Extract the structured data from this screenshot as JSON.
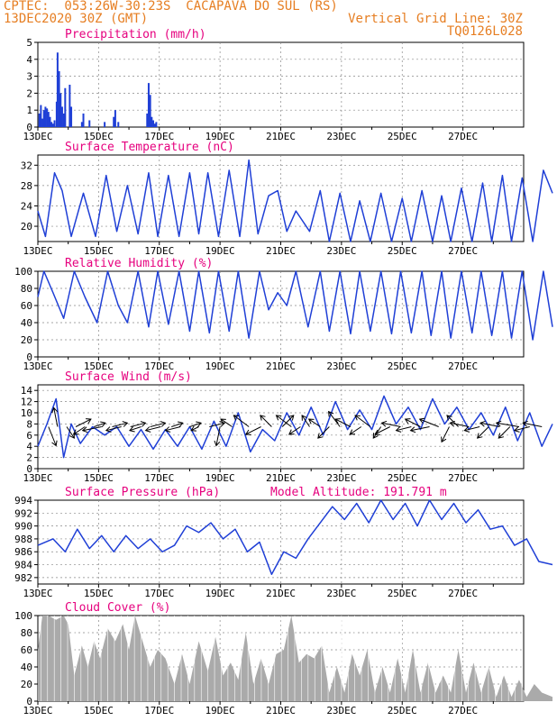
{
  "header": {
    "line1": "CPTEC:  053:26W-30:23S  CACAPAVA DO SUL (RS)",
    "line2_left": "13DEC2020 30Z (GMT)",
    "line2_right": "Vertical Grid Line: 30Z",
    "line3_right": "TQ0126L028"
  },
  "colors": {
    "header": "#e67e22",
    "panel_title": "#e6007e",
    "line": "#1f3fd6",
    "bar": "#1f3fd6",
    "cloud": "#aaaaaa",
    "grid": "#888888",
    "arrow": "#000000"
  },
  "x_ticks": [
    "13DEC",
    "15DEC",
    "17DEC",
    "19DEC",
    "21DEC",
    "23DEC",
    "25DEC",
    "27DEC"
  ],
  "chart_data": [
    {
      "id": "precip",
      "type": "bar",
      "title": "Precipitation (mm/h)",
      "ylim": [
        0,
        5
      ],
      "yticks": [
        0,
        1,
        2,
        3,
        4,
        5
      ],
      "x": [
        0.05,
        0.1,
        0.15,
        0.2,
        0.25,
        0.3,
        0.35,
        0.4,
        0.45,
        0.5,
        0.55,
        0.62,
        0.65,
        0.7,
        0.75,
        0.8,
        0.85,
        0.9,
        1.05,
        1.1,
        1.45,
        1.5,
        1.7,
        2.2,
        2.5,
        2.55,
        2.65,
        3.6,
        3.65,
        3.7,
        3.75,
        3.8,
        3.85,
        3.9
      ],
      "values": [
        0.8,
        1.3,
        0.5,
        1.0,
        1.2,
        1.1,
        0.9,
        0.6,
        0.3,
        0.2,
        0.4,
        1.5,
        4.4,
        3.3,
        2.0,
        1.2,
        0.8,
        2.3,
        2.5,
        1.2,
        0.3,
        0.8,
        0.4,
        0.3,
        0.6,
        1.0,
        0.3,
        0.8,
        2.6,
        1.9,
        0.6,
        0.4,
        0.2,
        0.3
      ]
    },
    {
      "id": "temp",
      "type": "line",
      "title": "Surface Temperature (nC)",
      "ylim": [
        17,
        34
      ],
      "yticks": [
        20,
        24,
        28,
        32
      ],
      "x": [
        0,
        0.25,
        0.55,
        0.8,
        1.1,
        1.5,
        1.9,
        2.25,
        2.6,
        2.95,
        3.3,
        3.65,
        3.95,
        4.3,
        4.65,
        5.0,
        5.3,
        5.6,
        5.95,
        6.3,
        6.65,
        6.95,
        7.25,
        7.6,
        7.9,
        8.2,
        8.5,
        8.95,
        9.3,
        9.6,
        9.95,
        10.3,
        10.6,
        10.95,
        11.3,
        11.65,
        12.0,
        12.3,
        12.65,
        13.0,
        13.3,
        13.6,
        13.95,
        14.3,
        14.65,
        14.95,
        15.3,
        15.6,
        15.95,
        16.3,
        16.65,
        16.95
      ],
      "values": [
        23,
        18,
        30.5,
        27,
        18,
        26.5,
        18,
        30,
        19,
        28,
        18.5,
        30.5,
        18,
        30,
        18,
        30.5,
        18.5,
        30.5,
        18,
        31,
        18,
        33,
        18.5,
        26,
        27,
        19,
        23,
        19,
        27,
        17,
        26.5,
        17,
        25,
        17,
        26.5,
        17,
        25.5,
        17,
        27,
        17,
        26,
        17,
        27.5,
        17,
        28.5,
        17,
        30,
        17,
        29.5,
        17,
        31,
        26.5
      ]
    },
    {
      "id": "rh",
      "type": "line",
      "title": "Relative Humidity (%)",
      "ylim": [
        0,
        100
      ],
      "yticks": [
        0,
        20,
        40,
        60,
        80,
        100
      ],
      "x": [
        0,
        0.2,
        0.5,
        0.85,
        1.2,
        1.55,
        1.95,
        2.3,
        2.65,
        2.95,
        3.3,
        3.65,
        3.95,
        4.3,
        4.65,
        5.0,
        5.3,
        5.65,
        5.95,
        6.3,
        6.6,
        6.95,
        7.3,
        7.6,
        7.9,
        8.2,
        8.5,
        8.9,
        9.3,
        9.6,
        9.95,
        10.3,
        10.6,
        10.95,
        11.3,
        11.65,
        11.95,
        12.3,
        12.65,
        12.95,
        13.3,
        13.6,
        13.95,
        14.3,
        14.6,
        14.95,
        15.3,
        15.6,
        15.95,
        16.3,
        16.65,
        16.95
      ],
      "values": [
        70,
        100,
        75,
        45,
        100,
        70,
        40,
        100,
        60,
        40,
        100,
        35,
        100,
        38,
        100,
        30,
        100,
        28,
        100,
        30,
        100,
        22,
        100,
        55,
        75,
        60,
        100,
        35,
        100,
        30,
        100,
        27,
        100,
        30,
        100,
        27,
        100,
        28,
        100,
        25,
        100,
        22,
        100,
        28,
        100,
        25,
        100,
        22,
        100,
        20,
        100,
        35
      ]
    },
    {
      "id": "wind",
      "type": "line",
      "title": "Surface Wind (m/s)",
      "ylim": [
        0,
        15
      ],
      "yticks": [
        0,
        2,
        4,
        6,
        8,
        10,
        12,
        14
      ],
      "x": [
        0,
        0.3,
        0.6,
        0.85,
        1.1,
        1.4,
        1.8,
        2.2,
        2.6,
        3.0,
        3.4,
        3.8,
        4.2,
        4.6,
        5.0,
        5.4,
        5.8,
        6.2,
        6.6,
        7.0,
        7.4,
        7.8,
        8.2,
        8.6,
        9.0,
        9.4,
        9.8,
        10.2,
        10.6,
        11.0,
        11.4,
        11.8,
        12.2,
        12.6,
        13.0,
        13.4,
        13.8,
        14.2,
        14.6,
        15.0,
        15.4,
        15.8,
        16.2,
        16.6,
        16.95
      ],
      "values": [
        4,
        8,
        12.5,
        2,
        8,
        4.5,
        7.5,
        6,
        7.5,
        4,
        7,
        3.5,
        7,
        4,
        7.5,
        3.5,
        8.5,
        4,
        10,
        3,
        7,
        5,
        10,
        6,
        11,
        6,
        12,
        7,
        10.5,
        7,
        13,
        8,
        11,
        7,
        12.5,
        8,
        11,
        7,
        10,
        6,
        11,
        5,
        10,
        4,
        8
      ]
    },
    {
      "id": "pres",
      "type": "line",
      "title": "Surface Pressure (hPa)",
      "annotation": "Model Altitude: 191.791  m",
      "ylim": [
        981,
        994
      ],
      "yticks": [
        982,
        984,
        986,
        988,
        990,
        992,
        994
      ],
      "x": [
        0,
        0.5,
        0.9,
        1.3,
        1.7,
        2.1,
        2.5,
        2.9,
        3.3,
        3.7,
        4.1,
        4.5,
        4.9,
        5.3,
        5.7,
        6.1,
        6.5,
        6.9,
        7.3,
        7.7,
        8.1,
        8.5,
        8.9,
        9.3,
        9.7,
        10.1,
        10.5,
        10.9,
        11.3,
        11.7,
        12.1,
        12.5,
        12.9,
        13.3,
        13.7,
        14.1,
        14.5,
        14.9,
        15.3,
        15.7,
        16.1,
        16.5,
        16.95
      ],
      "values": [
        987,
        988,
        986,
        989.5,
        986.5,
        988.5,
        986,
        988.5,
        986.5,
        988,
        986,
        987,
        990,
        989,
        990.5,
        988,
        989.5,
        986,
        987.5,
        982.5,
        986,
        985,
        988,
        990.5,
        993,
        991,
        993.5,
        990.5,
        994,
        991,
        993.5,
        990,
        994,
        991,
        993.5,
        990.5,
        992.5,
        989.5,
        990,
        987,
        988,
        984.5,
        984
      ]
    },
    {
      "id": "cloud",
      "type": "area",
      "title": "Cloud Cover (%)",
      "ylim": [
        0,
        100
      ],
      "yticks": [
        0,
        20,
        40,
        60,
        80,
        100
      ],
      "x": [
        0,
        0.15,
        0.35,
        0.6,
        0.85,
        1.0,
        1.2,
        1.45,
        1.65,
        1.85,
        2.05,
        2.3,
        2.55,
        2.8,
        3.0,
        3.2,
        3.45,
        3.7,
        3.95,
        4.2,
        4.5,
        4.75,
        5.0,
        5.3,
        5.6,
        5.85,
        6.1,
        6.35,
        6.6,
        6.85,
        7.1,
        7.35,
        7.6,
        7.85,
        8.1,
        8.35,
        8.6,
        8.85,
        9.1,
        9.35,
        9.6,
        9.85,
        10.1,
        10.35,
        10.6,
        10.85,
        11.1,
        11.35,
        11.6,
        11.85,
        12.1,
        12.35,
        12.6,
        12.85,
        13.1,
        13.35,
        13.6,
        13.85,
        14.1,
        14.35,
        14.6,
        14.85,
        15.1,
        15.35,
        15.6,
        15.85,
        16.1,
        16.35,
        16.6,
        16.95
      ],
      "values": [
        60,
        100,
        100,
        95,
        100,
        90,
        30,
        65,
        40,
        70,
        50,
        85,
        70,
        90,
        60,
        100,
        70,
        40,
        60,
        50,
        20,
        55,
        20,
        70,
        35,
        75,
        30,
        45,
        25,
        80,
        20,
        50,
        20,
        55,
        60,
        100,
        45,
        55,
        50,
        65,
        10,
        40,
        10,
        55,
        30,
        60,
        10,
        40,
        10,
        50,
        10,
        60,
        10,
        45,
        10,
        30,
        10,
        60,
        10,
        45,
        10,
        40,
        5,
        30,
        5,
        25,
        5,
        20,
        10,
        5
      ]
    },
    {
      "id": "wind_vectors",
      "type": "scatter",
      "title": "",
      "units": "m/s",
      "x": [
        0.35,
        0.65,
        0.95,
        1.25,
        1.55,
        1.85,
        2.1,
        2.45,
        2.75,
        3.05,
        3.4,
        3.7,
        4.05,
        4.4,
        4.7,
        5.0,
        5.3,
        5.65,
        6.0,
        6.4,
        6.95,
        7.35,
        7.7,
        8.05,
        8.35,
        8.65,
        8.95,
        9.3,
        9.6,
        9.95,
        10.3,
        10.65,
        10.95,
        11.3,
        11.6,
        11.95,
        12.3,
        12.6,
        12.9,
        13.2,
        13.55,
        13.85,
        14.2,
        14.55,
        14.85,
        15.2,
        15.55,
        15.85,
        16.2,
        16.6
      ],
      "values": [
        [
          2,
          -5
        ],
        [
          -1,
          5
        ],
        [
          2,
          -3
        ],
        [
          4,
          2
        ],
        [
          -3,
          -2
        ],
        [
          3,
          1
        ],
        [
          -5,
          -1
        ],
        [
          4,
          1
        ],
        [
          -4,
          -1
        ],
        [
          4,
          1
        ],
        [
          -3,
          -1
        ],
        [
          4,
          1
        ],
        [
          -4,
          -1
        ],
        [
          3,
          1
        ],
        [
          -4,
          -1
        ],
        [
          3,
          1
        ],
        [
          -2,
          -1
        ],
        [
          4,
          1
        ],
        [
          -1,
          -5
        ],
        [
          -3,
          2
        ],
        [
          -4,
          3
        ],
        [
          -4,
          -2
        ],
        [
          -3,
          3
        ],
        [
          3,
          3
        ],
        [
          -4,
          3
        ],
        [
          -3,
          -2
        ],
        [
          -2,
          3
        ],
        [
          -3,
          2
        ],
        [
          -3,
          -3
        ],
        [
          -3,
          4
        ],
        [
          -4,
          2
        ],
        [
          -3,
          -2
        ],
        [
          -4,
          3
        ],
        [
          -2,
          -3
        ],
        [
          -4,
          -2
        ],
        [
          -5,
          1
        ],
        [
          -4,
          -1
        ],
        [
          -4,
          2
        ],
        [
          -5,
          -1
        ],
        [
          -5,
          2
        ],
        [
          -2,
          -4
        ],
        [
          -3,
          3
        ],
        [
          -5,
          1
        ],
        [
          -4,
          -1
        ],
        [
          -3,
          -3
        ],
        [
          -5,
          1
        ],
        [
          -3,
          -3
        ],
        [
          -6,
          1
        ],
        [
          -4,
          -1
        ],
        [
          -5,
          1
        ]
      ]
    }
  ]
}
